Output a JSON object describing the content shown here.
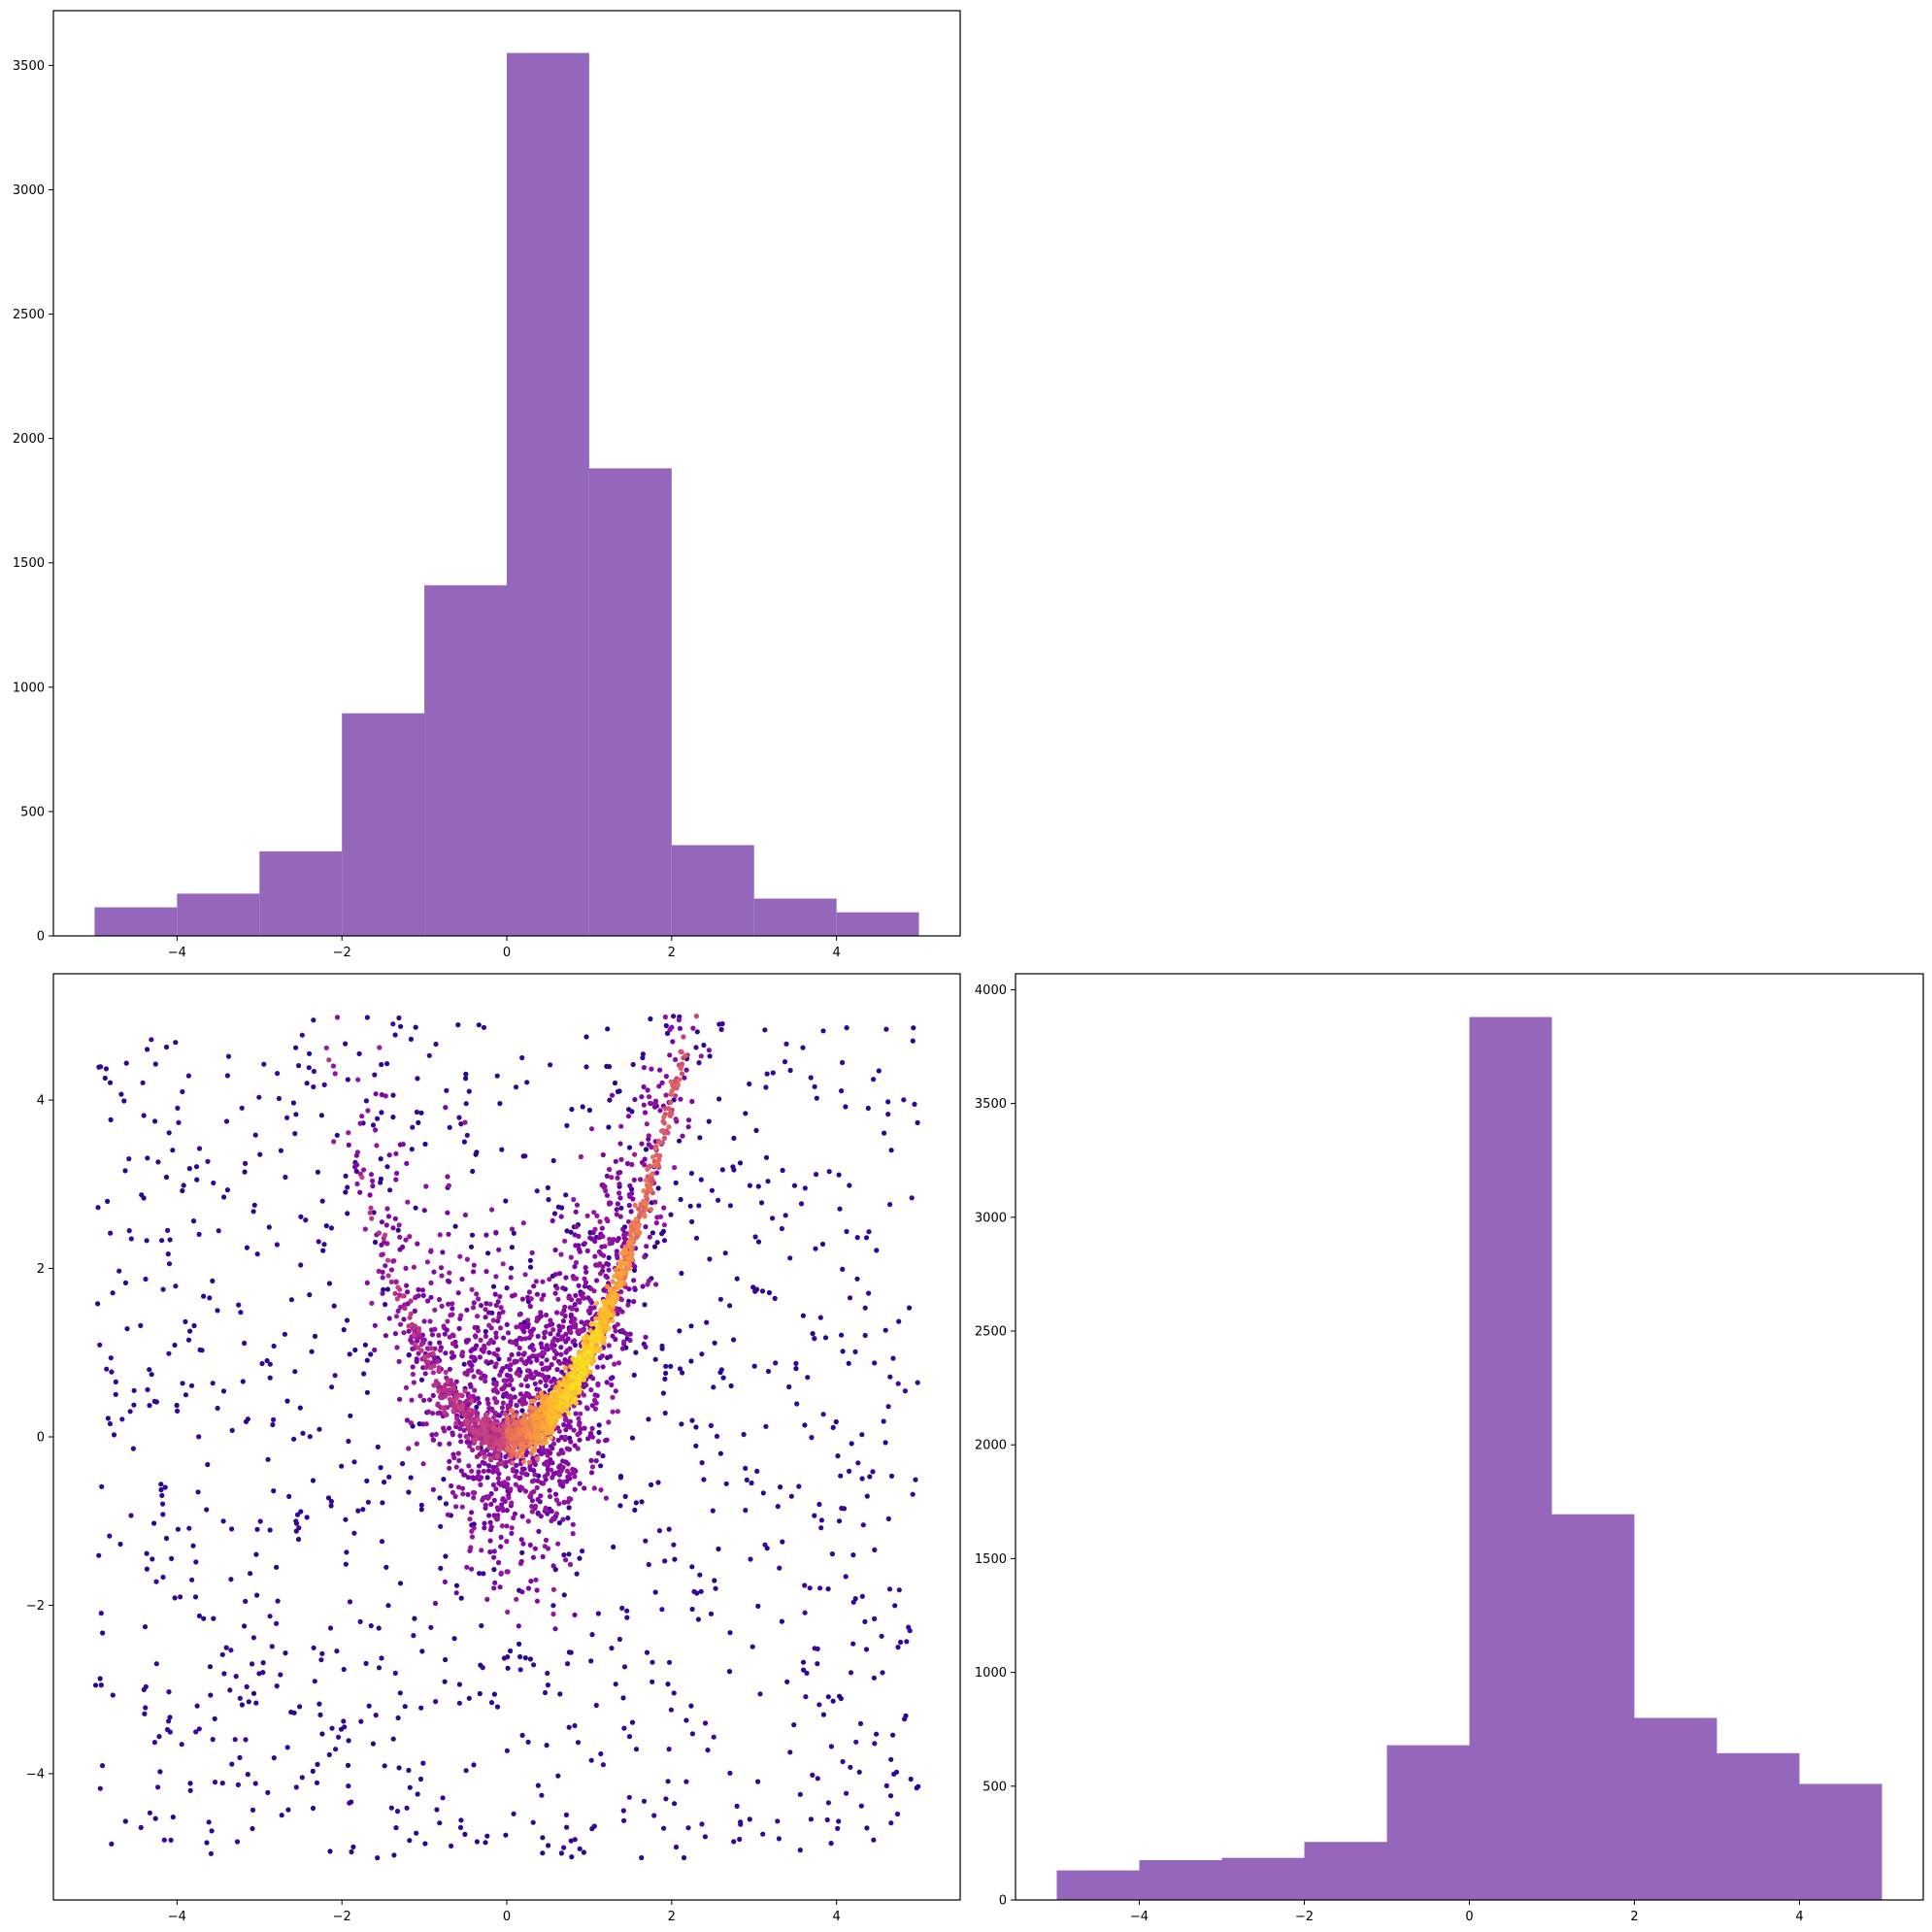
{
  "colors": {
    "bar": "#9467bd",
    "axes": "#000000",
    "scatter_colormap": "plasma"
  },
  "chart_data": [
    {
      "type": "bar",
      "panel": "top-left",
      "title": "",
      "xlabel": "",
      "ylabel": "",
      "bin_edges": [
        -5,
        -4,
        -3,
        -2,
        -1,
        0,
        1,
        2,
        3,
        4,
        5
      ],
      "values": [
        115,
        170,
        340,
        895,
        1410,
        3550,
        1880,
        365,
        150,
        95
      ],
      "xlim": [
        -5.5,
        5.5
      ],
      "ylim": [
        0,
        3720
      ],
      "xticks": [
        -4,
        -2,
        0,
        2,
        4
      ],
      "xtick_labels": [
        "−4",
        "−2",
        "0",
        "2",
        "4"
      ],
      "yticks": [
        0,
        500,
        1000,
        1500,
        2000,
        2500,
        3000,
        3500
      ],
      "ytick_labels": [
        "0",
        "500",
        "1000",
        "1500",
        "2000",
        "2500",
        "3000",
        "3500"
      ],
      "grid": false
    },
    {
      "type": "scatter",
      "panel": "bottom-left",
      "title": "",
      "xlabel": "",
      "ylabel": "",
      "description_of_structure": "parabolic band y ≈ x^2 colored by density (plasma), plus uniform background noise on [-5,5] x [-5,5]",
      "xlim": [
        -5.5,
        5.5
      ],
      "ylim": [
        -5.5,
        5.5
      ],
      "xticks": [
        -4,
        -2,
        0,
        2,
        4
      ],
      "xtick_labels": [
        "−4",
        "−2",
        "0",
        "2",
        "4"
      ],
      "yticks": [
        -4,
        -2,
        0,
        2,
        4
      ],
      "ytick_labels": [
        "−4",
        "−2",
        "0",
        "2",
        "4"
      ],
      "grid": false
    },
    {
      "type": "bar",
      "panel": "bottom-right",
      "title": "",
      "xlabel": "",
      "ylabel": "",
      "bin_edges": [
        -5,
        -4,
        -3,
        -2,
        -1,
        0,
        1,
        2,
        3,
        4,
        5
      ],
      "values": [
        130,
        175,
        185,
        255,
        680,
        3880,
        1695,
        800,
        645,
        510
      ],
      "xlim": [
        -5.5,
        5.5
      ],
      "ylim": [
        0,
        4070
      ],
      "xticks": [
        -4,
        -2,
        0,
        2,
        4
      ],
      "xtick_labels": [
        "−4",
        "−2",
        "0",
        "2",
        "4"
      ],
      "yticks": [
        0,
        500,
        1000,
        1500,
        2000,
        2500,
        3000,
        3500,
        4000
      ],
      "ytick_labels": [
        "0",
        "500",
        "1000",
        "1500",
        "2000",
        "2500",
        "3000",
        "3500",
        "4000"
      ],
      "grid": false
    }
  ]
}
